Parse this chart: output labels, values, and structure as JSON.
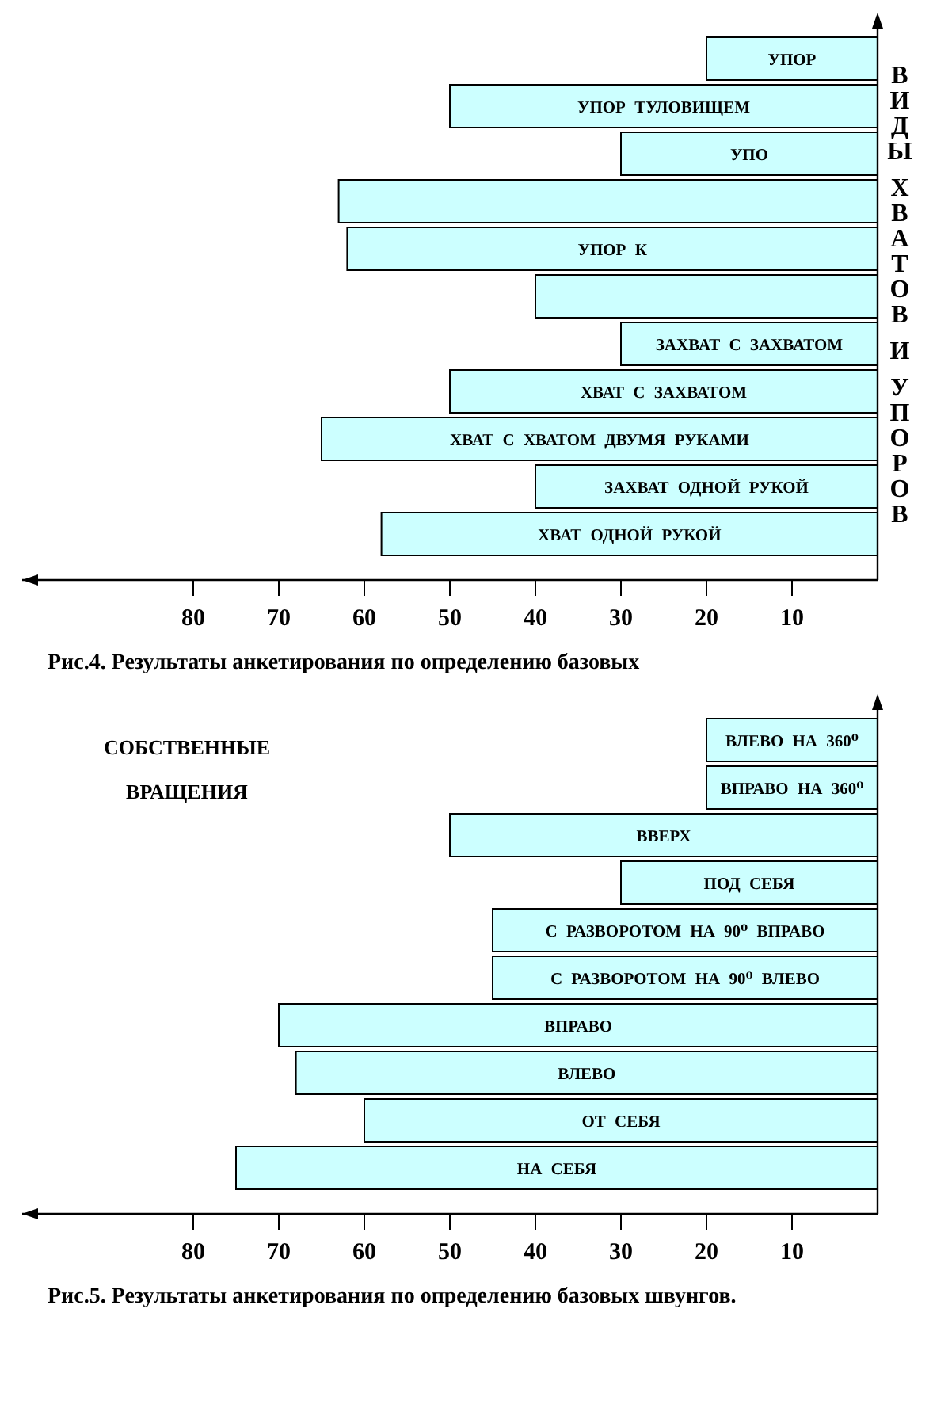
{
  "chart_data": [
    {
      "type": "bar",
      "orientation": "horizontal",
      "categories": [
        "УПОР",
        "УПОР ТУЛОВИЩЕМ",
        "УПО",
        null,
        "УПОР К",
        null,
        "ЗАХВАТ С ЗАХВАТОМ",
        "ХВАТ С ЗАХВАТОМ",
        "ХВАТ С ХВАТОМ ДВУМЯ РУКАМИ",
        "ЗАХВАТ ОДНОЙ РУКОЙ",
        "ХВАТ ОДНОЙ РУКОЙ"
      ],
      "values": [
        20,
        50,
        30,
        63,
        62,
        40,
        30,
        50,
        65,
        40,
        58
      ],
      "color": "#ccffff",
      "xlim": [
        100,
        0
      ],
      "xticks": [
        80,
        70,
        60,
        50,
        40,
        30,
        20,
        10
      ],
      "ylabel": "ВИДЫ ХВАТОВ И УПОРОВ",
      "annotations": [
        "Рис.4. Результаты анкетирования по определению базовых"
      ]
    },
    {
      "type": "bar",
      "orientation": "horizontal",
      "categories": [
        "ВЛЕВО НА 360⁰",
        "ВПРАВО НА 360⁰",
        "ВВЕРХ",
        "ПОД СЕБЯ",
        "С РАЗВОРОТОМ НА 90⁰ ВПРАВО",
        "С РАЗВОРОТОМ НА 90⁰ ВЛЕВО",
        "ВПРАВО",
        "ВЛЕВО",
        "ОТ СЕБЯ",
        "НА СЕБЯ"
      ],
      "values": [
        20,
        20,
        50,
        30,
        45,
        45,
        70,
        68,
        60,
        75
      ],
      "color": "#ccffff",
      "xlim": [
        100,
        0
      ],
      "xticks": [
        80,
        70,
        60,
        50,
        40,
        30,
        20,
        10
      ],
      "annotations": [
        "СОБСТВЕННЫЕ ВРАЩЕНИЯ",
        "Рис.5. Результаты анкетирования по определению базовых швунгов."
      ]
    }
  ]
}
